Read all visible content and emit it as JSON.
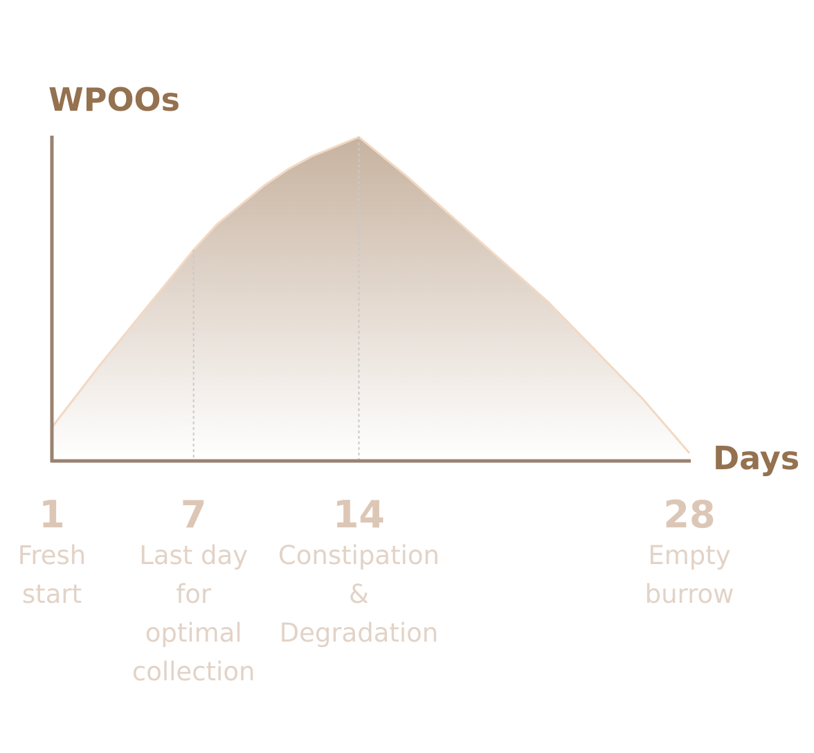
{
  "chart_data": {
    "type": "area",
    "xlabel": "Days",
    "ylabel": "WPOOs",
    "x": [
      1,
      3,
      5,
      7,
      8,
      9,
      10,
      11,
      12,
      13,
      14,
      16,
      18,
      20,
      22,
      24,
      26,
      28
    ],
    "y": [
      0.1,
      0.29,
      0.47,
      0.65,
      0.73,
      0.79,
      0.85,
      0.9,
      0.94,
      0.97,
      1.0,
      0.88,
      0.75,
      0.62,
      0.49,
      0.34,
      0.19,
      0.02
    ],
    "xlim": [
      1,
      28
    ],
    "ylim": [
      0,
      1.0
    ],
    "grid": false,
    "markers": [
      {
        "x": 1,
        "number": "1",
        "lines": [
          "Fresh",
          "start"
        ],
        "guide": false
      },
      {
        "x": 7,
        "number": "7",
        "lines": [
          "Last day",
          "for",
          "optimal",
          "collection"
        ],
        "guide": true,
        "guide_y": 0.65
      },
      {
        "x": 14,
        "number": "14",
        "lines": [
          "Constipation",
          "&",
          "Degradation"
        ],
        "guide": true,
        "guide_y": 1.0
      },
      {
        "x": 28,
        "number": "28",
        "lines": [
          "Empty",
          "burrow"
        ],
        "guide": false
      }
    ],
    "colors": {
      "axis": "#9a8270",
      "axis_title": "#94714f",
      "fill_top": "#c7b29f",
      "outline": "#f2d9c3",
      "guide": "#c9c9c9",
      "tick_number": "#dcc7b6",
      "tick_desc": "#e2d3c7"
    }
  }
}
